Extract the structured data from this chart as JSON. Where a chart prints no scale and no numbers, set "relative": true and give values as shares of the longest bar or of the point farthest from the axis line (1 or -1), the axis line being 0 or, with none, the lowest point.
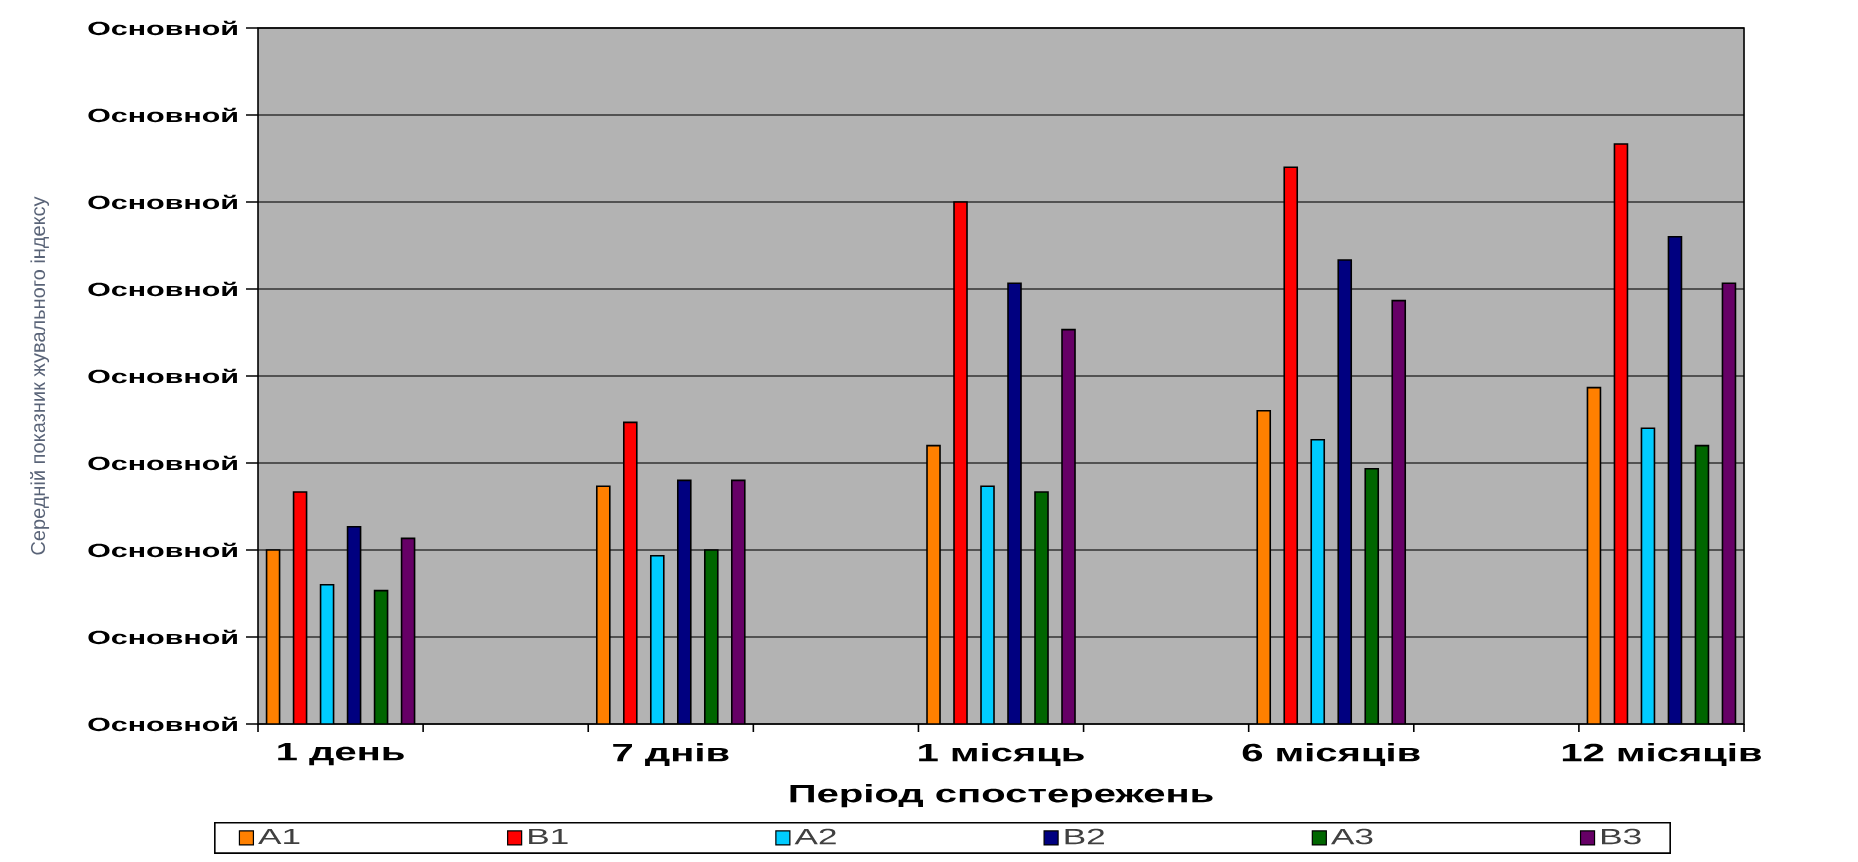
{
  "chart_data": {
    "type": "bar",
    "xlabel": "Період спостережень",
    "categories": [
      "1 день",
      null,
      "7 днів",
      null,
      "1 місяць",
      null,
      "6 місяців",
      null,
      "12 місяців"
    ],
    "relative": true,
    "annotations": [
      "Середній показник жувального індексу",
      "Основной",
      "Основной",
      "Основной",
      "Основной",
      "Основной",
      "Основной",
      "Основной",
      "Основной",
      "Основной"
    ],
    "grid": "y",
    "legend": "bottom",
    "series": [
      {
        "name": "A1",
        "color": "#ff8000",
        "values": [
          0.3,
          null,
          0.41,
          null,
          0.48,
          null,
          0.54,
          null,
          0.58
        ]
      },
      {
        "name": "B1",
        "color": "#ff0000",
        "values": [
          0.4,
          null,
          0.52,
          null,
          0.9,
          null,
          0.96,
          null,
          1.0
        ]
      },
      {
        "name": "A2",
        "color": "#00ccff",
        "values": [
          0.24,
          null,
          0.29,
          null,
          0.41,
          null,
          0.49,
          null,
          0.51
        ]
      },
      {
        "name": "B2",
        "color": "#000080",
        "values": [
          0.34,
          null,
          0.42,
          null,
          0.76,
          null,
          0.8,
          null,
          0.84
        ]
      },
      {
        "name": "A3",
        "color": "#006600",
        "values": [
          0.23,
          null,
          0.3,
          null,
          0.4,
          null,
          0.44,
          null,
          0.48
        ]
      },
      {
        "name": "B3",
        "color": "#660066",
        "values": [
          0.32,
          null,
          0.42,
          null,
          0.68,
          null,
          0.73,
          null,
          0.76
        ]
      }
    ]
  }
}
